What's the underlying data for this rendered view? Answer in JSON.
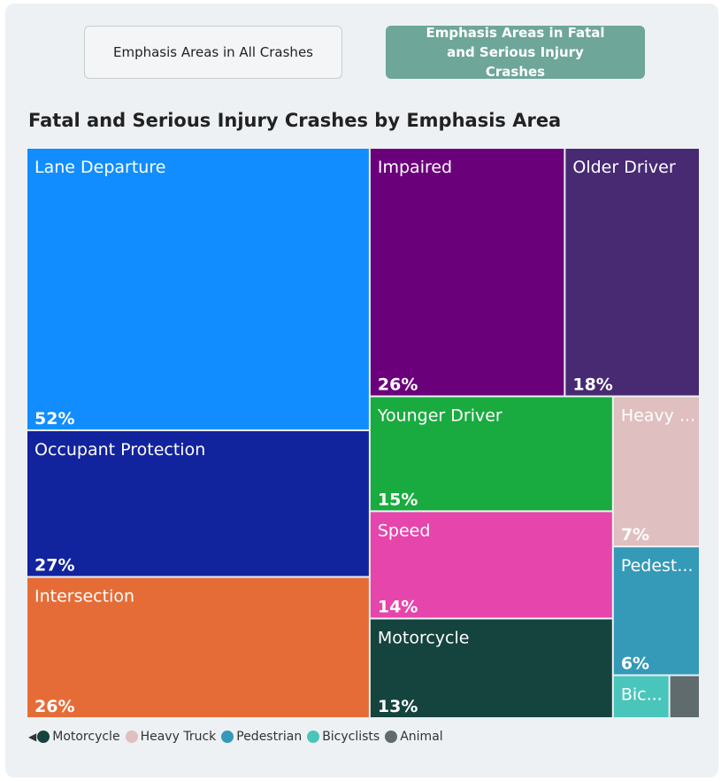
{
  "buttons": [
    "Emphasis Areas in All Crashes",
    "Emphasis Areas in Fatal and Serious Injury Crashes"
  ],
  "chart_data": {
    "type": "treemap",
    "title": "Fatal and Serious Injury Crashes by Emphasis Area",
    "categories": [
      "Lane Departure",
      "Occupant Protection",
      "Intersection",
      "Impaired",
      "Older Driver",
      "Younger Driver",
      "Speed",
      "Motorcycle",
      "Heavy Truck",
      "Pedestrian",
      "Bicyclists",
      "Animal"
    ],
    "tile_labels": [
      "Lane Departure",
      "Occupant Protection",
      "Intersection",
      "Impaired",
      "Older Driver",
      "Younger Driver",
      "Speed",
      "Motorcycle",
      "Heavy ...",
      "Pedest...",
      "Bic...",
      null
    ],
    "values": [
      52,
      27,
      26,
      26,
      18,
      15,
      14,
      13,
      7,
      6,
      1.3,
      0.7
    ],
    "value_labels": [
      "52%",
      "27%",
      "26%",
      "26%",
      "18%",
      "15%",
      "14%",
      "13%",
      "7%",
      "6%",
      null,
      null
    ],
    "colors": [
      "#118dff",
      "#12239e",
      "#e66c37",
      "#6b007b",
      "#482a72",
      "#1aab40",
      "#e645ab",
      "#15433e",
      "#dfbfbf",
      "#3599b8",
      "#4ac5bb",
      "#5f6b6d"
    ],
    "legend_from": 7
  }
}
